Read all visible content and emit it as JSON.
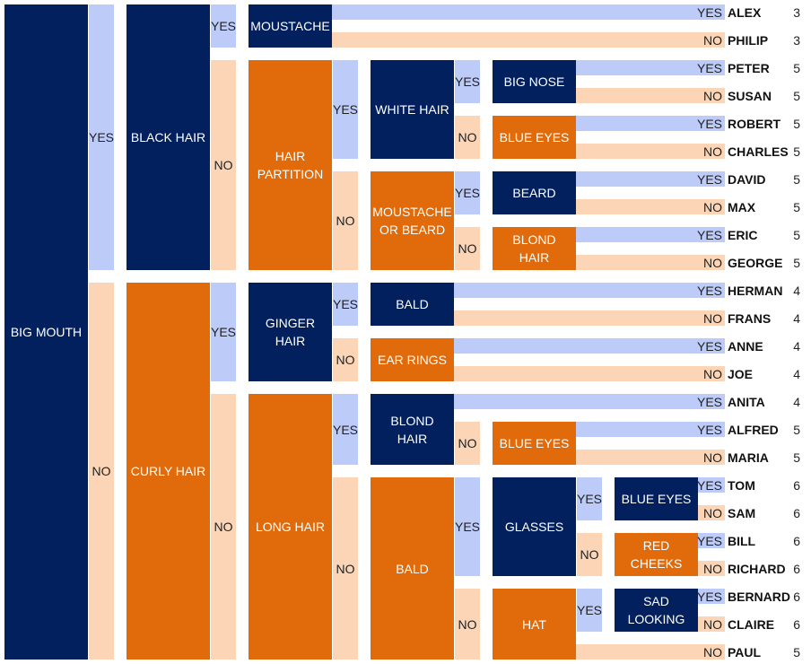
{
  "colors": {
    "yes_node": "#02205e",
    "no_node": "#e16a0a",
    "yes_bar": "#bdcbf9",
    "no_bar": "#fbd5b5"
  },
  "branch_labels": {
    "yes": "YES",
    "no": "NO"
  },
  "tree": {
    "label": "BIG MOUTH",
    "yes": {
      "label": "BLACK HAIR",
      "yes": {
        "label": "MOUSTACHE",
        "yes": {
          "name": "ALEX",
          "count": "3"
        },
        "no": {
          "name": "PHILIP",
          "count": "3"
        }
      },
      "no": {
        "label": "HAIR PARTITION",
        "yes": {
          "label": "WHITE HAIR",
          "yes": {
            "label": "BIG NOSE",
            "yes": {
              "name": "PETER",
              "count": "5"
            },
            "no": {
              "name": "SUSAN",
              "count": "5"
            }
          },
          "no": {
            "label": "BLUE EYES",
            "yes": {
              "name": "ROBERT",
              "count": "5"
            },
            "no": {
              "name": "CHARLES",
              "count": "5"
            }
          }
        },
        "no": {
          "label": "MOUSTACHE OR BEARD",
          "yes": {
            "label": "BEARD",
            "yes": {
              "name": "DAVID",
              "count": "5"
            },
            "no": {
              "name": "MAX",
              "count": "5"
            }
          },
          "no": {
            "label": "BLOND HAIR",
            "yes": {
              "name": "ERIC",
              "count": "5"
            },
            "no": {
              "name": "GEORGE",
              "count": "5"
            }
          }
        }
      }
    },
    "no": {
      "label": "CURLY HAIR",
      "yes": {
        "label": "GINGER HAIR",
        "yes": {
          "label": "BALD",
          "yes": {
            "name": "HERMAN",
            "count": "4"
          },
          "no": {
            "name": "FRANS",
            "count": "4"
          }
        },
        "no": {
          "label": "EAR RINGS",
          "yes": {
            "name": "ANNE",
            "count": "4"
          },
          "no": {
            "name": "JOE",
            "count": "4"
          }
        }
      },
      "no": {
        "label": "LONG HAIR",
        "yes": {
          "label": "BLOND HAIR",
          "yes": {
            "name": "ANITA",
            "count": "4"
          },
          "no": {
            "label": "BLUE EYES",
            "yes": {
              "name": "ALFRED",
              "count": "5"
            },
            "no": {
              "name": "MARIA",
              "count": "5"
            }
          }
        },
        "no": {
          "label": "BALD",
          "yes": {
            "label": "GLASSES",
            "yes": {
              "label": "BLUE EYES",
              "yes": {
                "name": "TOM",
                "count": "6"
              },
              "no": {
                "name": "SAM",
                "count": "6"
              }
            },
            "no": {
              "label": "RED CHEEKS",
              "yes": {
                "name": "BILL",
                "count": "6"
              },
              "no": {
                "name": "RICHARD",
                "count": "6"
              }
            }
          },
          "no": {
            "label": "HAT",
            "yes": {
              "label": "SAD LOOKING",
              "yes": {
                "name": "BERNARD",
                "count": "6"
              },
              "no": {
                "name": "CLAIRE",
                "count": "6"
              }
            },
            "no": {
              "name": "PAUL",
              "count": "5"
            }
          }
        }
      }
    }
  }
}
